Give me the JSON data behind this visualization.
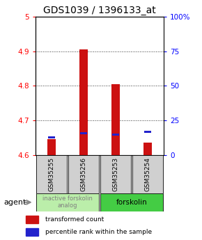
{
  "title": "GDS1039 / 1396133_at",
  "samples": [
    "GSM35255",
    "GSM35256",
    "GSM35253",
    "GSM35254"
  ],
  "transformed_counts": [
    4.645,
    4.905,
    4.805,
    4.635
  ],
  "percentile_ranks": [
    12,
    15,
    14,
    16
  ],
  "ylim_left": [
    4.6,
    5.0
  ],
  "ylim_right": [
    0,
    100
  ],
  "yticks_left": [
    4.6,
    4.7,
    4.8,
    4.9,
    5.0
  ],
  "ytick_labels_left": [
    "4.6",
    "4.7",
    "4.8",
    "4.9",
    "5"
  ],
  "yticks_right": [
    0,
    25,
    50,
    75,
    100
  ],
  "ytick_labels_right": [
    "0",
    "25",
    "50",
    "75",
    "100%"
  ],
  "groups": [
    {
      "label": "inactive forskolin\nanalog",
      "color": "#bbeeaa",
      "text_color": "gray"
    },
    {
      "label": "forskolin",
      "color": "#44cc44",
      "text_color": "black"
    }
  ],
  "bar_width": 0.25,
  "red_color": "#cc1111",
  "blue_color": "#2222cc",
  "sample_bg_color": "#d0d0d0",
  "agent_label": "agent",
  "legend_red": "transformed count",
  "legend_blue": "percentile rank within the sample",
  "title_fontsize": 10,
  "tick_fontsize": 7.5,
  "label_fontsize": 6.5,
  "base_value": 4.6
}
